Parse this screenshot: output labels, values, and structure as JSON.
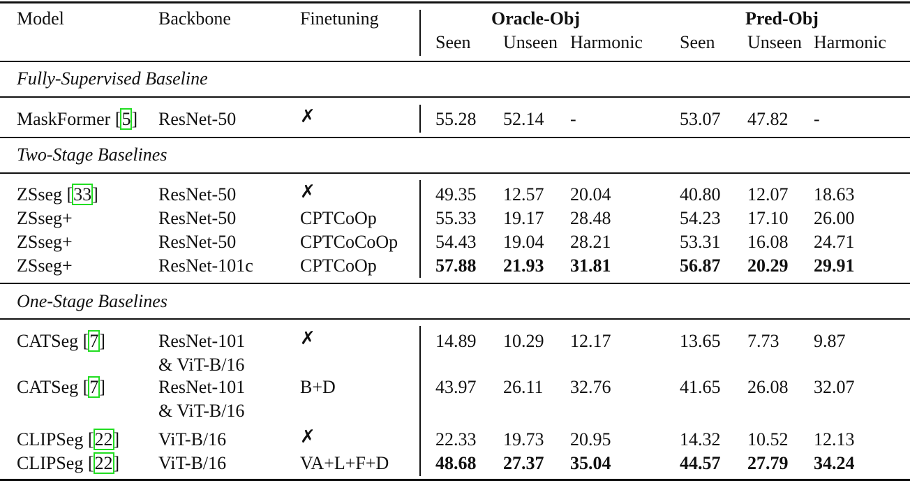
{
  "table": {
    "headers": {
      "model": "Model",
      "backbone": "Backbone",
      "finetuning": "Finetuning",
      "group1": "Oracle-Obj",
      "group2": "Pred-Obj",
      "sub": [
        "Seen",
        "Unseen",
        "Harmonic",
        "Seen",
        "Unseen",
        "Harmonic"
      ]
    },
    "sections": [
      {
        "title": "Fully-Supervised Baseline",
        "rows": [
          {
            "model": "MaskFormer [",
            "ref": "5",
            "ref_close": "]",
            "backbone": [
              "ResNet-50"
            ],
            "finetuning": "✗",
            "values": [
              "55.28",
              "52.14",
              "-",
              "53.07",
              "47.82",
              "-"
            ],
            "bold": false
          }
        ]
      },
      {
        "title": "Two-Stage Baselines",
        "rows": [
          {
            "model": "ZSseg [",
            "ref": "33",
            "ref_close": "]",
            "backbone": [
              "ResNet-50"
            ],
            "finetuning": "✗",
            "values": [
              "49.35",
              "12.57",
              "20.04",
              "40.80",
              "12.07",
              "18.63"
            ],
            "bold": false
          },
          {
            "model": "ZSseg+",
            "ref": "",
            "ref_close": "",
            "backbone": [
              "ResNet-50"
            ],
            "finetuning": "CPTCoOp",
            "values": [
              "55.33",
              "19.17",
              "28.48",
              "54.23",
              "17.10",
              "26.00"
            ],
            "bold": false
          },
          {
            "model": "ZSseg+",
            "ref": "",
            "ref_close": "",
            "backbone": [
              "ResNet-50"
            ],
            "finetuning": "CPTCoCoOp",
            "values": [
              "54.43",
              "19.04",
              "28.21",
              "53.31",
              "16.08",
              "24.71"
            ],
            "bold": false
          },
          {
            "model": "ZSseg+",
            "ref": "",
            "ref_close": "",
            "backbone": [
              "ResNet-101c"
            ],
            "finetuning": "CPTCoOp",
            "values": [
              "57.88",
              "21.93",
              "31.81",
              "56.87",
              "20.29",
              "29.91"
            ],
            "bold": true
          }
        ]
      },
      {
        "title": "One-Stage Baselines",
        "rows": [
          {
            "model": "CATSeg [",
            "ref": "7",
            "ref_close": "]",
            "backbone": [
              "ResNet-101",
              "& ViT-B/16"
            ],
            "finetuning": "✗",
            "values": [
              "14.89",
              "10.29",
              "12.17",
              "13.65",
              "7.73",
              "9.87"
            ],
            "bold": false
          },
          {
            "model": "CATSeg [",
            "ref": "7",
            "ref_close": "]",
            "backbone": [
              "ResNet-101",
              "& ViT-B/16"
            ],
            "finetuning": "B+D",
            "values": [
              "43.97",
              "26.11",
              "32.76",
              "41.65",
              "26.08",
              "32.07"
            ],
            "bold": false
          },
          {
            "model": "CLIPSeg [",
            "ref": "22",
            "ref_close": "]",
            "backbone": [
              "ViT-B/16"
            ],
            "finetuning": "✗",
            "values": [
              "22.33",
              "19.73",
              "20.95",
              "14.32",
              "10.52",
              "12.13"
            ],
            "bold": false
          },
          {
            "model": "CLIPSeg [",
            "ref": "22",
            "ref_close": "]",
            "backbone": [
              "ViT-B/16"
            ],
            "finetuning": "VA+L+F+D",
            "values": [
              "48.68",
              "27.37",
              "35.04",
              "44.57",
              "27.79",
              "34.24"
            ],
            "bold": true
          }
        ]
      }
    ],
    "colors": {
      "ref_box": "#22dd22",
      "text": "#111111"
    }
  }
}
